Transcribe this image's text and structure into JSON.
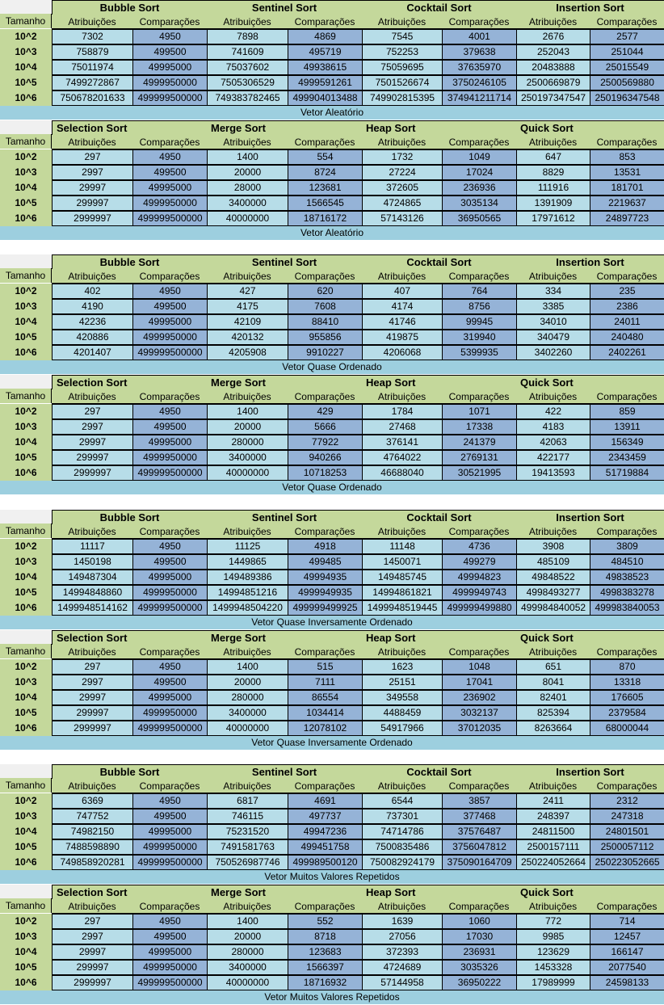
{
  "row_labels": [
    "10^2",
    "10^3",
    "10^4",
    "10^5",
    "10^6"
  ],
  "size_label": "Tamanho",
  "col_a": "Atribuições",
  "col_b": "Comparações",
  "tables": [
    {
      "algorithms": [
        "Bubble Sort",
        "Sentinel Sort",
        "Cocktail Sort",
        "Insertion Sort"
      ],
      "rows": [
        [
          "7302",
          "4950",
          "7898",
          "4869",
          "7545",
          "4001",
          "2676",
          "2577"
        ],
        [
          "758879",
          "499500",
          "741609",
          "495719",
          "752253",
          "379638",
          "252043",
          "251044"
        ],
        [
          "75011974",
          "49995000",
          "75037602",
          "49938615",
          "75059695",
          "37635970",
          "20483888",
          "25015549"
        ],
        [
          "7499272867",
          "4999950000",
          "7505306529",
          "4999591261",
          "7501526674",
          "3750246105",
          "2500669879",
          "2500569880"
        ],
        [
          "750678201633",
          "499999500000",
          "749383782465",
          "499904013488",
          "749902815395",
          "374941211714",
          "250197347547",
          "250196347548"
        ]
      ],
      "caption": "Vetor Aleatório"
    },
    {
      "algorithms": [
        "Selection Sort",
        "Merge Sort",
        "Heap Sort",
        "Quick Sort"
      ],
      "rows": [
        [
          "297",
          "4950",
          "1400",
          "554",
          "1732",
          "1049",
          "647",
          "853"
        ],
        [
          "2997",
          "499500",
          "20000",
          "8724",
          "27224",
          "17024",
          "8829",
          "13531"
        ],
        [
          "29997",
          "49995000",
          "28000",
          "123681",
          "372605",
          "236936",
          "111916",
          "181701"
        ],
        [
          "299997",
          "4999950000",
          "3400000",
          "1566545",
          "4724865",
          "3035134",
          "1391909",
          "2219637"
        ],
        [
          "2999997",
          "499999500000",
          "40000000",
          "18716172",
          "57143126",
          "36950565",
          "17971612",
          "24897723"
        ]
      ],
      "caption": "Vetor Aleatório"
    },
    {
      "algorithms": [
        "Bubble Sort",
        "Sentinel Sort",
        "Cocktail Sort",
        "Insertion Sort"
      ],
      "rows": [
        [
          "402",
          "4950",
          "427",
          "620",
          "407",
          "764",
          "334",
          "235"
        ],
        [
          "4190",
          "499500",
          "4175",
          "7608",
          "4174",
          "8756",
          "3385",
          "2386"
        ],
        [
          "42236",
          "49995000",
          "42109",
          "88410",
          "41746",
          "99945",
          "34010",
          "24011"
        ],
        [
          "420886",
          "4999950000",
          "420132",
          "955856",
          "419875",
          "319940",
          "340479",
          "240480"
        ],
        [
          "4201407",
          "499999500000",
          "4205908",
          "9910227",
          "4206068",
          "5399935",
          "3402260",
          "2402261"
        ]
      ],
      "caption": "Vetor Quase Ordenado"
    },
    {
      "algorithms": [
        "Selection Sort",
        "Merge Sort",
        "Heap Sort",
        "Quick Sort"
      ],
      "rows": [
        [
          "297",
          "4950",
          "1400",
          "429",
          "1784",
          "1071",
          "422",
          "859"
        ],
        [
          "2997",
          "499500",
          "20000",
          "5666",
          "27468",
          "17338",
          "4183",
          "13911"
        ],
        [
          "29997",
          "49995000",
          "280000",
          "77922",
          "376141",
          "241379",
          "42063",
          "156349"
        ],
        [
          "299997",
          "4999950000",
          "3400000",
          "940266",
          "4764022",
          "2769131",
          "422177",
          "2343459"
        ],
        [
          "2999997",
          "499999500000",
          "40000000",
          "10718253",
          "46688040",
          "30521995",
          "19413593",
          "51719884"
        ]
      ],
      "caption": "Vetor Quase Ordenado"
    },
    {
      "algorithms": [
        "Bubble Sort",
        "Sentinel Sort",
        "Cocktail Sort",
        "Insertion Sort"
      ],
      "rows": [
        [
          "11117",
          "4950",
          "11125",
          "4918",
          "11148",
          "4736",
          "3908",
          "3809"
        ],
        [
          "1450198",
          "499500",
          "1449865",
          "499485",
          "1450071",
          "499279",
          "485109",
          "484510"
        ],
        [
          "149487304",
          "49995000",
          "149489386",
          "49994935",
          "149485745",
          "49994823",
          "49848522",
          "49838523"
        ],
        [
          "14994848860",
          "4999950000",
          "14994851216",
          "4999949935",
          "14994861821",
          "4999949743",
          "4998493277",
          "4998383278"
        ],
        [
          "1499948514162",
          "499999500000",
          "1499948504220",
          "499999499925",
          "1499948519445",
          "499999499880",
          "499984840052",
          "499983840053"
        ]
      ],
      "caption": "Vetor Quase Inversamente Ordenado"
    },
    {
      "algorithms": [
        "Selection Sort",
        "Merge Sort",
        "Heap Sort",
        "Quick Sort"
      ],
      "rows": [
        [
          "297",
          "4950",
          "1400",
          "515",
          "1623",
          "1048",
          "651",
          "870"
        ],
        [
          "2997",
          "499500",
          "20000",
          "7111",
          "25151",
          "17041",
          "8041",
          "13318"
        ],
        [
          "29997",
          "49995000",
          "280000",
          "86554",
          "349558",
          "236902",
          "82401",
          "176605"
        ],
        [
          "299997",
          "4999950000",
          "3400000",
          "1034414",
          "4488459",
          "3032137",
          "825394",
          "2379584"
        ],
        [
          "2999997",
          "499999500000",
          "40000000",
          "12078102",
          "54917966",
          "37012035",
          "8263664",
          "68000044"
        ]
      ],
      "caption": "Vetor Quase Inversamente Ordenado"
    },
    {
      "algorithms": [
        "Bubble Sort",
        "Sentinel Sort",
        "Cocktail Sort",
        "Insertion Sort"
      ],
      "rows": [
        [
          "6369",
          "4950",
          "6817",
          "4691",
          "6544",
          "3857",
          "2411",
          "2312"
        ],
        [
          "747752",
          "499500",
          "746115",
          "497737",
          "737301",
          "377468",
          "248397",
          "247318"
        ],
        [
          "74982150",
          "49995000",
          "75231520",
          "49947236",
          "74714786",
          "37576487",
          "24811500",
          "24801501"
        ],
        [
          "7488598890",
          "4999950000",
          "7491581763",
          "499451758",
          "7500835486",
          "3756047812",
          "2500157111",
          "2500057112"
        ],
        [
          "749858920281",
          "499999500000",
          "750526987746",
          "499989500120",
          "750082924179",
          "375090164709",
          "250224052664",
          "250223052665"
        ]
      ],
      "caption": "Vetor Muitos Valores Repetidos"
    },
    {
      "algorithms": [
        "Selection Sort",
        "Merge Sort",
        "Heap Sort",
        "Quick Sort"
      ],
      "rows": [
        [
          "297",
          "4950",
          "1400",
          "552",
          "1639",
          "1060",
          "772",
          "714"
        ],
        [
          "2997",
          "499500",
          "20000",
          "8718",
          "27056",
          "17030",
          "9985",
          "12457"
        ],
        [
          "29997",
          "49995000",
          "280000",
          "123683",
          "372393",
          "236931",
          "123629",
          "166147"
        ],
        [
          "299997",
          "4999950000",
          "3400000",
          "1566397",
          "4724689",
          "3035326",
          "1453328",
          "2077540"
        ],
        [
          "2999997",
          "499999500000",
          "40000000",
          "18716932",
          "57144958",
          "36950222",
          "17989999",
          "24598133"
        ]
      ],
      "caption": "Vetor Muitos Valores Repetidos"
    }
  ],
  "colors": {
    "header_green": "#c4d89b",
    "cell_light_blue": "#b7dde8",
    "cell_dark_blue": "#95b3d7",
    "caption_band": "#9dcfdf"
  }
}
